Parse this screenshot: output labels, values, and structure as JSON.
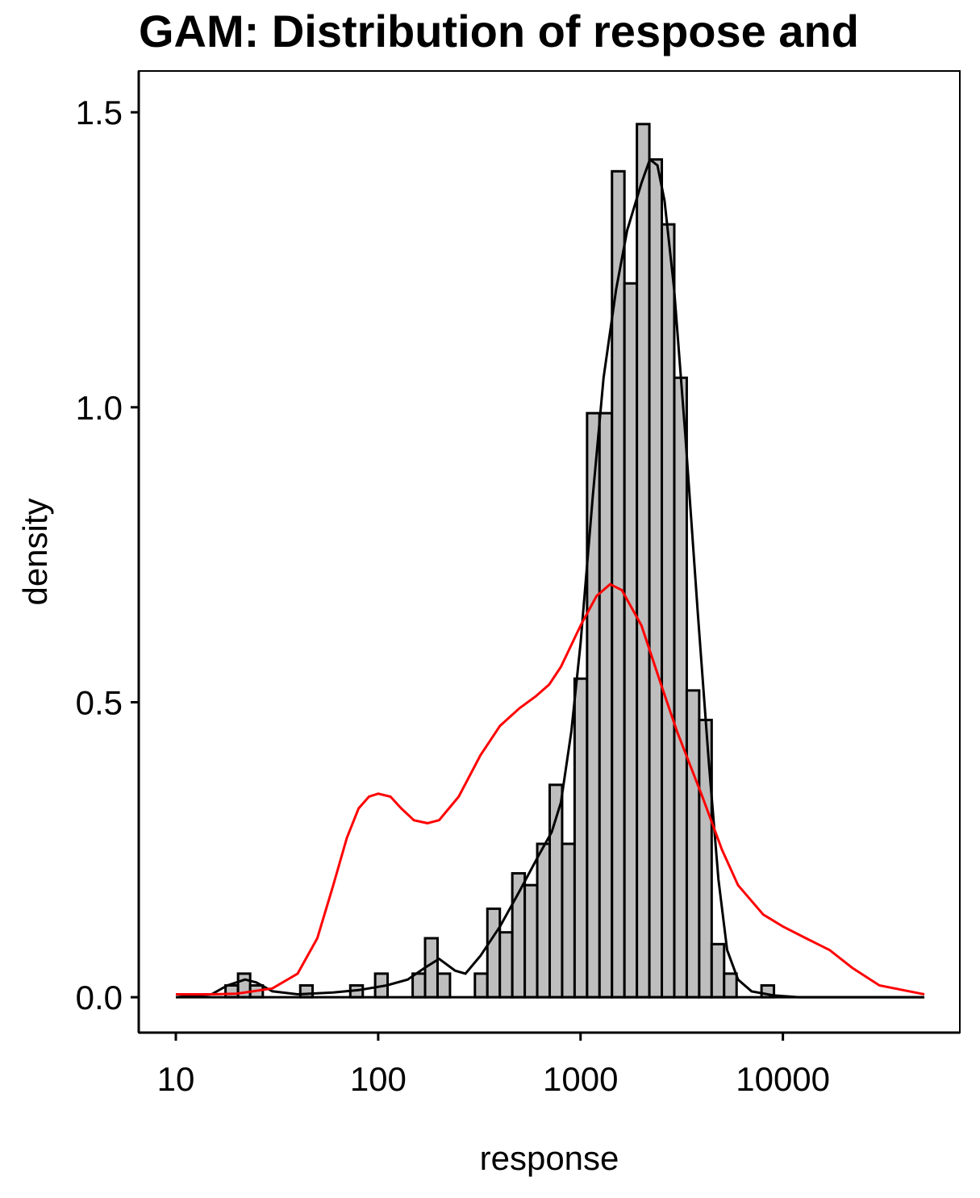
{
  "chart_data": {
    "type": "histogram",
    "title": "GAM: Distribution of respose and",
    "xlabel": "response",
    "ylabel": "density",
    "x_scale": "log10",
    "xlim": [
      10,
      50000
    ],
    "ylim": [
      -0.06,
      1.57
    ],
    "x_ticks": [
      "10",
      "100",
      "1000",
      "10000"
    ],
    "x_tick_values": [
      10,
      100,
      1000,
      10000
    ],
    "y_ticks": [
      "0.0",
      "0.5",
      "1.0",
      "1.5"
    ],
    "y_tick_values": [
      0,
      0.5,
      1.0,
      1.5
    ],
    "grid": false,
    "legend": "none",
    "colors": {
      "bar_fill": "#bebebe",
      "bar_stroke": "#000000",
      "observed_density": "#000000",
      "fitted_density": "#ff0000"
    },
    "bins": [
      {
        "x0": 17.6,
        "x1": 20.3,
        "density": 0.02
      },
      {
        "x0": 20.3,
        "x1": 23.3,
        "density": 0.04
      },
      {
        "x0": 23.3,
        "x1": 26.9,
        "density": 0.02
      },
      {
        "x0": 41.2,
        "x1": 47.4,
        "density": 0.02
      },
      {
        "x0": 72.8,
        "x1": 83.9,
        "density": 0.02
      },
      {
        "x0": 96.6,
        "x1": 111.3,
        "density": 0.04
      },
      {
        "x0": 148.0,
        "x1": 170.5,
        "density": 0.04
      },
      {
        "x0": 170.5,
        "x1": 196.5,
        "density": 0.1
      },
      {
        "x0": 196.5,
        "x1": 226.4,
        "density": 0.04
      },
      {
        "x0": 300.6,
        "x1": 346.4,
        "density": 0.04
      },
      {
        "x0": 346.4,
        "x1": 399.2,
        "density": 0.15
      },
      {
        "x0": 399.2,
        "x1": 460.0,
        "density": 0.11
      },
      {
        "x0": 460.0,
        "x1": 530.1,
        "density": 0.21
      },
      {
        "x0": 530.1,
        "x1": 610.9,
        "density": 0.19
      },
      {
        "x0": 610.9,
        "x1": 703.9,
        "density": 0.26
      },
      {
        "x0": 703.9,
        "x1": 811.1,
        "density": 0.36
      },
      {
        "x0": 811.1,
        "x1": 934.7,
        "density": 0.26
      },
      {
        "x0": 934.7,
        "x1": 1077.1,
        "density": 0.54
      },
      {
        "x0": 1077.1,
        "x1": 1241.1,
        "density": 0.99
      },
      {
        "x0": 1241.1,
        "x1": 1430.2,
        "density": 0.99
      },
      {
        "x0": 1430.2,
        "x1": 1648.0,
        "density": 1.4
      },
      {
        "x0": 1648.0,
        "x1": 1899.1,
        "density": 1.21
      },
      {
        "x0": 1899.1,
        "x1": 2188.4,
        "density": 1.48
      },
      {
        "x0": 2188.4,
        "x1": 2521.7,
        "density": 1.42
      },
      {
        "x0": 2521.7,
        "x1": 2905.8,
        "density": 1.31
      },
      {
        "x0": 2905.8,
        "x1": 3348.4,
        "density": 1.05
      },
      {
        "x0": 3348.4,
        "x1": 3858.4,
        "density": 0.52
      },
      {
        "x0": 3858.4,
        "x1": 4446.1,
        "density": 0.47
      },
      {
        "x0": 4446.1,
        "x1": 5123.3,
        "density": 0.09
      },
      {
        "x0": 5123.3,
        "x1": 5903.6,
        "density": 0.04
      },
      {
        "x0": 7839.0,
        "x1": 9033.0,
        "density": 0.02
      }
    ],
    "series": [
      {
        "values": [
          [
            10,
            0.0
          ],
          [
            15,
            0.005
          ],
          [
            18,
            0.02
          ],
          [
            22,
            0.03
          ],
          [
            25,
            0.025
          ],
          [
            30,
            0.01
          ],
          [
            40,
            0.005
          ],
          [
            60,
            0.008
          ],
          [
            80,
            0.012
          ],
          [
            110,
            0.02
          ],
          [
            140,
            0.03
          ],
          [
            170,
            0.05
          ],
          [
            200,
            0.065
          ],
          [
            240,
            0.045
          ],
          [
            270,
            0.04
          ],
          [
            320,
            0.07
          ],
          [
            400,
            0.12
          ],
          [
            500,
            0.18
          ],
          [
            620,
            0.24
          ],
          [
            720,
            0.28
          ],
          [
            800,
            0.33
          ],
          [
            900,
            0.45
          ],
          [
            1000,
            0.6
          ],
          [
            1150,
            0.85
          ],
          [
            1300,
            1.05
          ],
          [
            1500,
            1.2
          ],
          [
            1700,
            1.3
          ],
          [
            2000,
            1.38
          ],
          [
            2200,
            1.42
          ],
          [
            2400,
            1.41
          ],
          [
            2600,
            1.35
          ],
          [
            2900,
            1.2
          ],
          [
            3300,
            0.95
          ],
          [
            3800,
            0.65
          ],
          [
            4300,
            0.4
          ],
          [
            4800,
            0.2
          ],
          [
            5300,
            0.08
          ],
          [
            6000,
            0.03
          ],
          [
            7000,
            0.01
          ],
          [
            9000,
            0.003
          ],
          [
            12000,
            0.0
          ],
          [
            50000,
            0.0
          ]
        ]
      },
      {
        "values": [
          [
            10,
            0.005
          ],
          [
            15,
            0.005
          ],
          [
            20,
            0.006
          ],
          [
            30,
            0.015
          ],
          [
            40,
            0.04
          ],
          [
            50,
            0.1
          ],
          [
            60,
            0.19
          ],
          [
            70,
            0.27
          ],
          [
            80,
            0.32
          ],
          [
            90,
            0.34
          ],
          [
            100,
            0.345
          ],
          [
            115,
            0.34
          ],
          [
            130,
            0.32
          ],
          [
            150,
            0.3
          ],
          [
            175,
            0.295
          ],
          [
            200,
            0.3
          ],
          [
            250,
            0.34
          ],
          [
            320,
            0.41
          ],
          [
            400,
            0.46
          ],
          [
            500,
            0.49
          ],
          [
            600,
            0.51
          ],
          [
            700,
            0.53
          ],
          [
            800,
            0.56
          ],
          [
            1000,
            0.63
          ],
          [
            1200,
            0.68
          ],
          [
            1400,
            0.7
          ],
          [
            1600,
            0.69
          ],
          [
            2000,
            0.63
          ],
          [
            2500,
            0.53
          ],
          [
            3000,
            0.45
          ],
          [
            4000,
            0.34
          ],
          [
            5000,
            0.25
          ],
          [
            6000,
            0.19
          ],
          [
            8000,
            0.14
          ],
          [
            10000,
            0.12
          ],
          [
            13000,
            0.1
          ],
          [
            17000,
            0.08
          ],
          [
            22000,
            0.05
          ],
          [
            30000,
            0.02
          ],
          [
            50000,
            0.005
          ]
        ]
      }
    ]
  }
}
